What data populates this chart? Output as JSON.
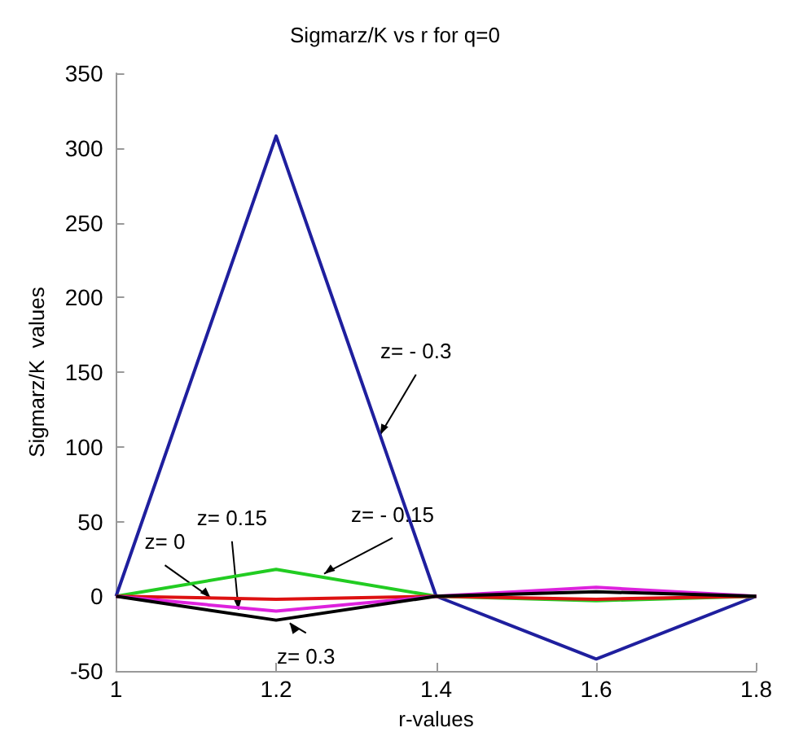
{
  "chart_data": {
    "type": "line",
    "title": "Sigmarz/K vs r for q=0",
    "xlabel": "r-values",
    "ylabel": "Sigmarz/K  values",
    "x": [
      1,
      1.2,
      1.4,
      1.6,
      1.8
    ],
    "series": [
      {
        "color": "#1f1f9e",
        "values": [
          0,
          308,
          0,
          -42,
          0
        ]
      },
      {
        "color": "#22cc22",
        "values": [
          0,
          18,
          0,
          -3,
          0
        ]
      },
      {
        "color": "#dd1111",
        "values": [
          0,
          -2,
          0,
          -2,
          0
        ]
      },
      {
        "color": "#dd22dd",
        "values": [
          0,
          -10,
          0,
          6,
          0
        ]
      },
      {
        "color": "#000000",
        "values": [
          0,
          -16,
          0,
          3,
          0
        ]
      }
    ],
    "annotations": [
      {
        "text": "z= - 0.3",
        "x": 1.33,
        "y": 108
      },
      {
        "text": "z= - 0.15",
        "x": 1.26,
        "y": 15
      },
      {
        "text": "z= 0",
        "x": 1.118,
        "y": -1
      },
      {
        "text": "z= 0.15",
        "x": 1.153,
        "y": -9
      },
      {
        "text": "z= 0.3",
        "x": 1.217,
        "y": -18
      }
    ],
    "xlim": [
      1,
      1.8
    ],
    "xticks": [
      1,
      1.2,
      1.4,
      1.6,
      1.8
    ],
    "ylim": [
      -50,
      350
    ],
    "yticks": [
      -50,
      0,
      50,
      100,
      150,
      200,
      250,
      300,
      350
    ],
    "grid": false,
    "marker": "none",
    "line_style": "solid"
  }
}
